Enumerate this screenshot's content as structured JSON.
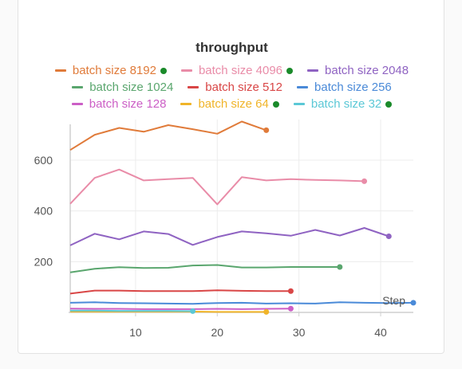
{
  "chart_data": {
    "type": "line",
    "title": "throughput",
    "xlabel": "Step",
    "ylabel": "",
    "xlim": [
      2,
      44
    ],
    "ylim": [
      0,
      760
    ],
    "x_ticks": [
      10,
      20,
      30,
      40
    ],
    "y_ticks": [
      200,
      400,
      600
    ],
    "grid": true,
    "legend_position": "top",
    "series": [
      {
        "name": "batch size 8192",
        "color": "#e07b3a",
        "dot": true,
        "x": [
          2,
          5,
          8,
          11,
          14,
          17,
          20,
          23,
          26
        ],
        "y": [
          640,
          700,
          727,
          712,
          738,
          722,
          704,
          752,
          718
        ]
      },
      {
        "name": "batch size 4096",
        "color": "#e98ca8",
        "dot": true,
        "x": [
          2,
          5,
          8,
          11,
          14,
          17,
          20,
          23,
          26,
          29,
          32,
          35,
          38
        ],
        "y": [
          428,
          530,
          563,
          520,
          525,
          530,
          426,
          533,
          520,
          525,
          522,
          520,
          517
        ]
      },
      {
        "name": "batch size 2048",
        "color": "#8f63c2",
        "dot": false,
        "x": [
          2,
          5,
          8,
          11,
          14,
          17,
          20,
          23,
          26,
          29,
          32,
          35,
          38,
          41
        ],
        "y": [
          264,
          310,
          288,
          319,
          309,
          266,
          297,
          319,
          312,
          302,
          325,
          303,
          333,
          300
        ]
      },
      {
        "name": "batch size 1024",
        "color": "#5aa66e",
        "dot": false,
        "x": [
          2,
          5,
          8,
          11,
          14,
          17,
          20,
          23,
          26,
          29,
          32,
          35
        ],
        "y": [
          158,
          172,
          178,
          175,
          176,
          185,
          187,
          177,
          177,
          179,
          179,
          179
        ]
      },
      {
        "name": "batch size 512",
        "color": "#d94646",
        "dot": false,
        "x": [
          2,
          5,
          8,
          11,
          14,
          17,
          20,
          23,
          26,
          29
        ],
        "y": [
          74,
          86,
          86,
          84,
          84,
          84,
          87,
          85,
          84,
          84
        ]
      },
      {
        "name": "batch size 256",
        "color": "#4a8ad8",
        "dot": false,
        "x": [
          2,
          5,
          8,
          11,
          14,
          17,
          20,
          23,
          26,
          29,
          32,
          35,
          38,
          41,
          44
        ],
        "y": [
          38,
          40,
          37,
          36,
          35,
          34,
          37,
          38,
          35,
          36,
          35,
          40,
          38,
          37,
          38
        ]
      },
      {
        "name": "batch size 128",
        "color": "#cc5fc6",
        "dot": false,
        "x": [
          2,
          5,
          8,
          11,
          14,
          17,
          20,
          23,
          26,
          29
        ],
        "y": [
          15,
          14,
          14,
          13,
          13,
          13,
          14,
          13,
          14,
          15
        ]
      },
      {
        "name": "batch size 64",
        "color": "#f0b429",
        "dot": true,
        "x": [
          2,
          5,
          8,
          11,
          14,
          17,
          20,
          23,
          26
        ],
        "y": [
          3,
          3,
          3,
          3,
          3,
          3,
          2,
          2,
          2
        ]
      },
      {
        "name": "batch size 32",
        "color": "#5bc8d6",
        "dot": true,
        "x": [
          2,
          5,
          8,
          11,
          14,
          17
        ],
        "y": [
          7,
          7,
          6,
          6,
          6,
          5
        ]
      }
    ]
  }
}
